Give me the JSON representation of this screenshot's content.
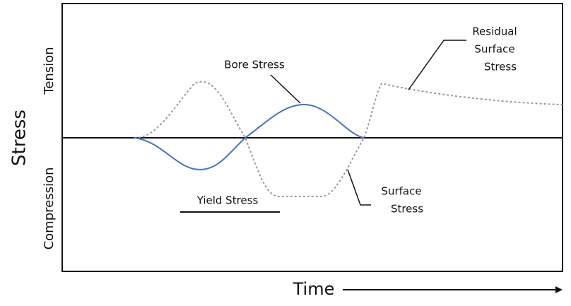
{
  "axes": {
    "y_label": "Stress",
    "y_top": "Tension",
    "y_bottom": "Compression",
    "x_label": "Time"
  },
  "labels": {
    "bore": [
      "Bore Stress"
    ],
    "yield": [
      "Yield Stress"
    ],
    "surface": [
      "Surface",
      "Stress"
    ],
    "residual": [
      "Residual",
      "Surface",
      "Stress"
    ]
  }
}
